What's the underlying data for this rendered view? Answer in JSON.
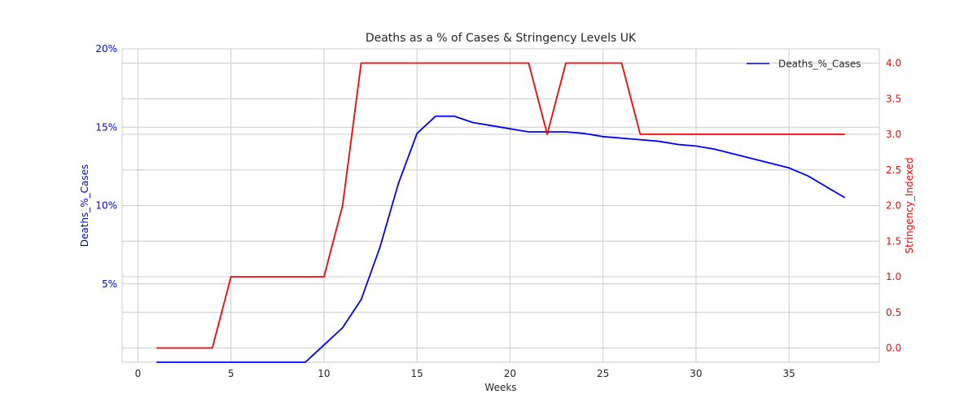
{
  "chart_data": {
    "type": "line",
    "title": "Deaths as a % of Cases & Stringency Levels UK",
    "xlabel": "Weeks",
    "ylabel_left": "Deaths_%_Cases",
    "ylabel_right": "Stringency_Indexed",
    "xlim": [
      -0.85,
      39.85
    ],
    "ylim_left": [
      0,
      20
    ],
    "ylim_right": [
      -0.2,
      4.2
    ],
    "x_ticks": [
      0,
      5,
      10,
      15,
      20,
      25,
      30,
      35
    ],
    "y_left_ticks": [
      5,
      10,
      15,
      20
    ],
    "y_left_tick_labels": [
      "5%",
      "10%",
      "15%",
      "20%"
    ],
    "y_right_ticks": [
      0.0,
      0.5,
      1.0,
      1.5,
      2.0,
      2.5,
      3.0,
      3.5,
      4.0
    ],
    "y_right_tick_labels": [
      "0.0",
      "0.5",
      "1.0",
      "1.5",
      "2.0",
      "2.5",
      "3.0",
      "3.5",
      "4.0"
    ],
    "grid": true,
    "legend_position": "top-right",
    "series": [
      {
        "name": "Deaths_%_Cases",
        "axis": "left",
        "color": "#0000ff",
        "x": [
          1,
          2,
          3,
          4,
          5,
          6,
          7,
          8,
          9,
          10,
          11,
          12,
          13,
          14,
          15,
          16,
          17,
          18,
          19,
          20,
          21,
          22,
          23,
          24,
          25,
          26,
          27,
          28,
          29,
          30,
          31,
          32,
          33,
          34,
          35,
          36,
          37,
          38
        ],
        "values": [
          0,
          0,
          0,
          0,
          0,
          0,
          0,
          0,
          0,
          1.1,
          2.2,
          4.0,
          7.3,
          11.4,
          14.6,
          15.7,
          15.7,
          15.3,
          15.1,
          14.9,
          14.7,
          14.7,
          14.7,
          14.6,
          14.4,
          14.3,
          14.2,
          14.1,
          13.9,
          13.8,
          13.6,
          13.3,
          13.0,
          12.7,
          12.4,
          11.9,
          11.2,
          10.5
        ]
      },
      {
        "axis": "right",
        "color": "#ff0000",
        "x": [
          1,
          2,
          3,
          4,
          5,
          6,
          7,
          8,
          9,
          10,
          11,
          12,
          13,
          14,
          15,
          16,
          17,
          18,
          19,
          20,
          21,
          22,
          23,
          24,
          25,
          26,
          27,
          28,
          29,
          30,
          31,
          32,
          33,
          34,
          35,
          36,
          37,
          38
        ],
        "values": [
          0,
          0,
          0,
          0,
          1,
          1,
          1,
          1,
          1,
          1,
          2,
          4,
          4,
          4,
          4,
          4,
          4,
          4,
          4,
          4,
          4,
          3,
          4,
          4,
          4,
          4,
          3,
          3,
          3,
          3,
          3,
          3,
          3,
          3,
          3,
          3,
          3,
          3
        ]
      }
    ]
  }
}
